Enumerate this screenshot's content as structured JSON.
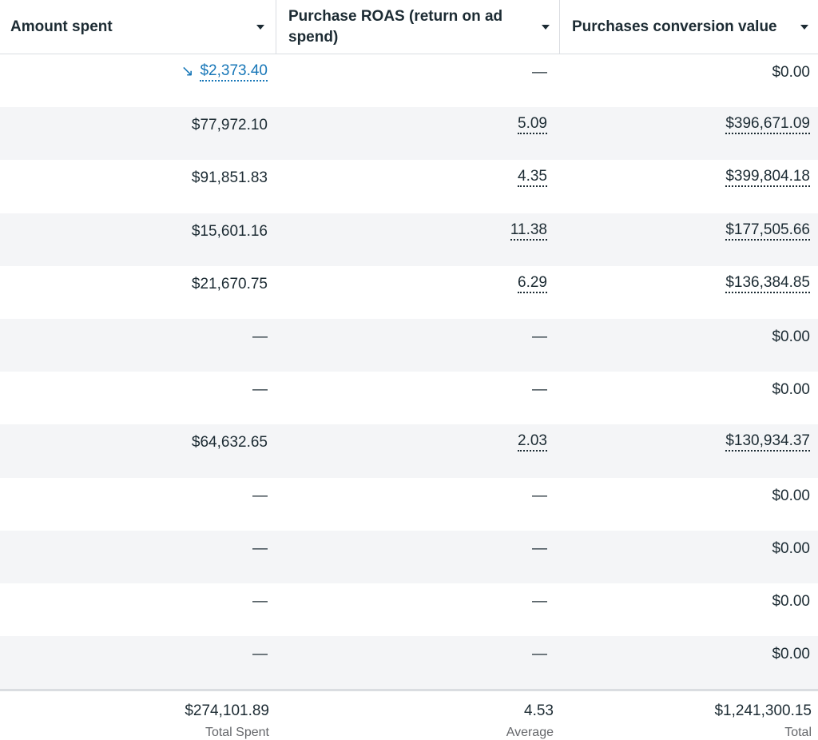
{
  "header": {
    "columns": [
      {
        "label": "Amount spent",
        "icon": "caret-down-icon"
      },
      {
        "label": "Purchase ROAS (return on ad spend)",
        "icon": "caret-down-icon"
      },
      {
        "label": "Purchases conversion value",
        "icon": "caret-down-icon"
      }
    ]
  },
  "rows": [
    {
      "spent": "$2,373.40",
      "roas": "—",
      "value": "$0.00",
      "spent_trend_icon": "trend-down-icon"
    },
    {
      "spent": "$77,972.10",
      "roas": "5.09",
      "value": "$396,671.09"
    },
    {
      "spent": "$91,851.83",
      "roas": "4.35",
      "value": "$399,804.18"
    },
    {
      "spent": "$15,601.16",
      "roas": "11.38",
      "value": "$177,505.66"
    },
    {
      "spent": "$21,670.75",
      "roas": "6.29",
      "value": "$136,384.85"
    },
    {
      "spent": "—",
      "roas": "—",
      "value": "$0.00"
    },
    {
      "spent": "—",
      "roas": "—",
      "value": "$0.00"
    },
    {
      "spent": "$64,632.65",
      "roas": "2.03",
      "value": "$130,934.37"
    },
    {
      "spent": "—",
      "roas": "—",
      "value": "$0.00"
    },
    {
      "spent": "—",
      "roas": "—",
      "value": "$0.00"
    },
    {
      "spent": "—",
      "roas": "—",
      "value": "$0.00"
    },
    {
      "spent": "—",
      "roas": "—",
      "value": "$0.00"
    }
  ],
  "footer": {
    "spent_total": "$274,101.89",
    "spent_label": "Total Spent",
    "roas_avg": "4.53",
    "roas_label": "Average",
    "value_total": "$1,241,300.15",
    "value_label": "Total"
  },
  "colors": {
    "link": "#1877b8",
    "text": "#1c2b33",
    "alt_row": "#f4f5f7",
    "muted": "#65676b"
  }
}
